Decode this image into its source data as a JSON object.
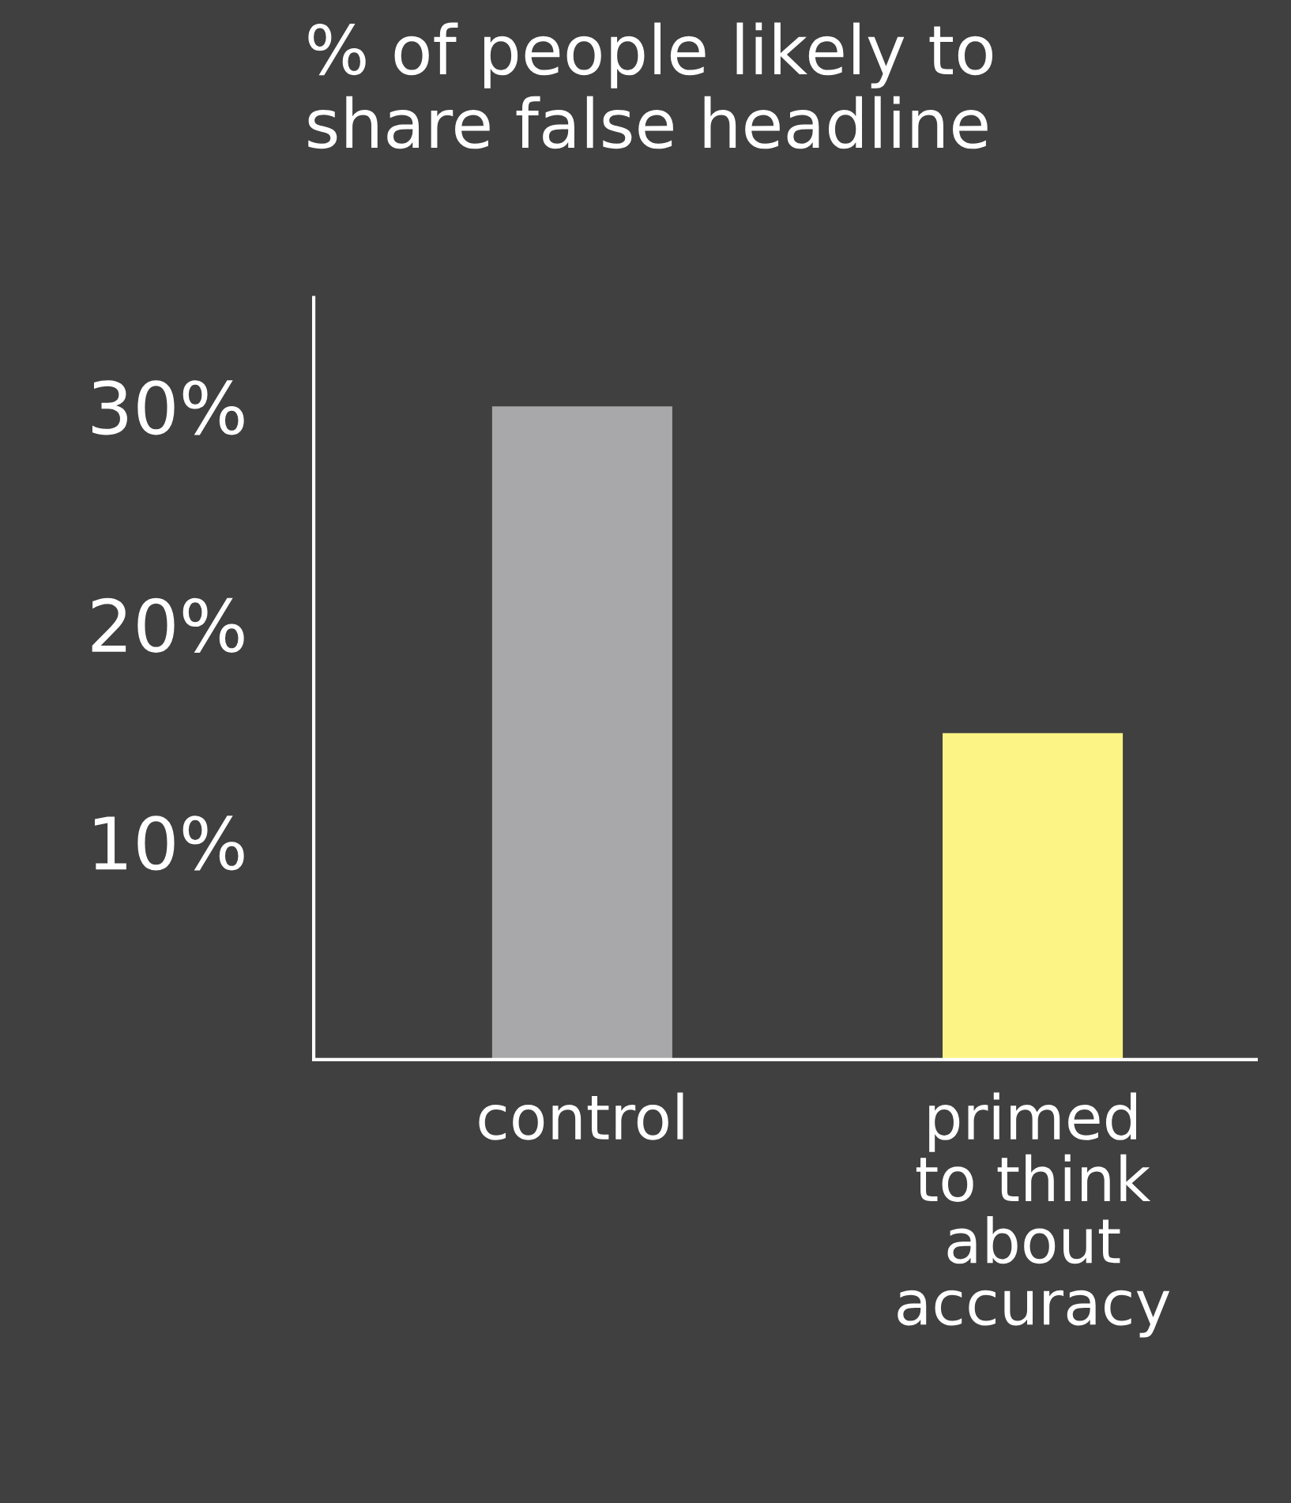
{
  "chart_data": {
    "type": "bar",
    "title": "% of people likely to\nshare false headline",
    "categories": [
      "control",
      "primed\nto think\nabout\naccuracy"
    ],
    "values": [
      30,
      15
    ],
    "colors": [
      "#a8a8aa",
      "#fcf484"
    ],
    "ylim": [
      0,
      35
    ],
    "yticks": [
      {
        "value": 10,
        "label": "10%"
      },
      {
        "value": 20,
        "label": "20%"
      },
      {
        "value": 30,
        "label": "30%"
      }
    ],
    "grid": false,
    "legend": false
  }
}
